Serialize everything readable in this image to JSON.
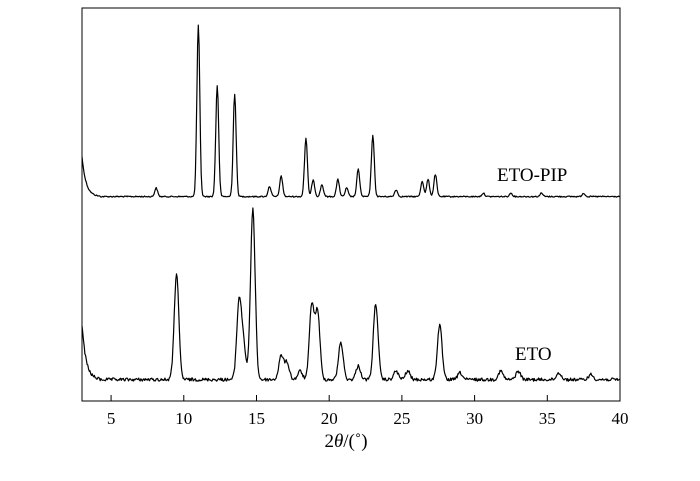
{
  "chart_data": {
    "type": "line",
    "xlabel": {
      "prefix": "2",
      "symbol": "θ",
      "suffix": "/(˚)"
    },
    "xlim": [
      3,
      40
    ],
    "xticks": [
      5,
      10,
      15,
      20,
      25,
      30,
      35,
      40
    ],
    "y_axis_ticks_labeled": false,
    "grid": false,
    "series": [
      {
        "name": "ETO-PIP",
        "color": "#000000",
        "baseline": 0.02,
        "peaks": [
          {
            "x": 8.1,
            "h": 0.05
          },
          {
            "x": 11.0,
            "h": 1.0
          },
          {
            "x": 12.3,
            "h": 0.65
          },
          {
            "x": 13.5,
            "h": 0.6
          },
          {
            "x": 15.9,
            "h": 0.06
          },
          {
            "x": 16.7,
            "h": 0.12
          },
          {
            "x": 18.4,
            "h": 0.34
          },
          {
            "x": 18.9,
            "h": 0.1
          },
          {
            "x": 19.5,
            "h": 0.07
          },
          {
            "x": 20.6,
            "h": 0.1
          },
          {
            "x": 21.2,
            "h": 0.05
          },
          {
            "x": 22.0,
            "h": 0.16
          },
          {
            "x": 23.0,
            "h": 0.36
          },
          {
            "x": 24.6,
            "h": 0.04
          },
          {
            "x": 26.4,
            "h": 0.09
          },
          {
            "x": 26.8,
            "h": 0.1
          },
          {
            "x": 27.3,
            "h": 0.13
          },
          {
            "x": 30.6,
            "h": 0.02
          },
          {
            "x": 32.5,
            "h": 0.02
          },
          {
            "x": 34.6,
            "h": 0.02
          },
          {
            "x": 37.5,
            "h": 0.02
          }
        ]
      },
      {
        "name": "ETO",
        "color": "#000000",
        "baseline": 0.02,
        "peaks": [
          {
            "x": 9.5,
            "h": 0.62
          },
          {
            "x": 13.8,
            "h": 0.45
          },
          {
            "x": 14.1,
            "h": 0.2
          },
          {
            "x": 14.75,
            "h": 1.0
          },
          {
            "x": 16.7,
            "h": 0.14
          },
          {
            "x": 17.1,
            "h": 0.1
          },
          {
            "x": 18.0,
            "h": 0.05
          },
          {
            "x": 18.8,
            "h": 0.44
          },
          {
            "x": 19.2,
            "h": 0.4
          },
          {
            "x": 20.8,
            "h": 0.22
          },
          {
            "x": 22.0,
            "h": 0.08
          },
          {
            "x": 23.2,
            "h": 0.45
          },
          {
            "x": 24.6,
            "h": 0.05
          },
          {
            "x": 25.4,
            "h": 0.05
          },
          {
            "x": 27.6,
            "h": 0.32
          },
          {
            "x": 29.0,
            "h": 0.04
          },
          {
            "x": 31.8,
            "h": 0.05
          },
          {
            "x": 33.0,
            "h": 0.05
          },
          {
            "x": 35.8,
            "h": 0.04
          },
          {
            "x": 38.0,
            "h": 0.03
          }
        ]
      }
    ]
  }
}
